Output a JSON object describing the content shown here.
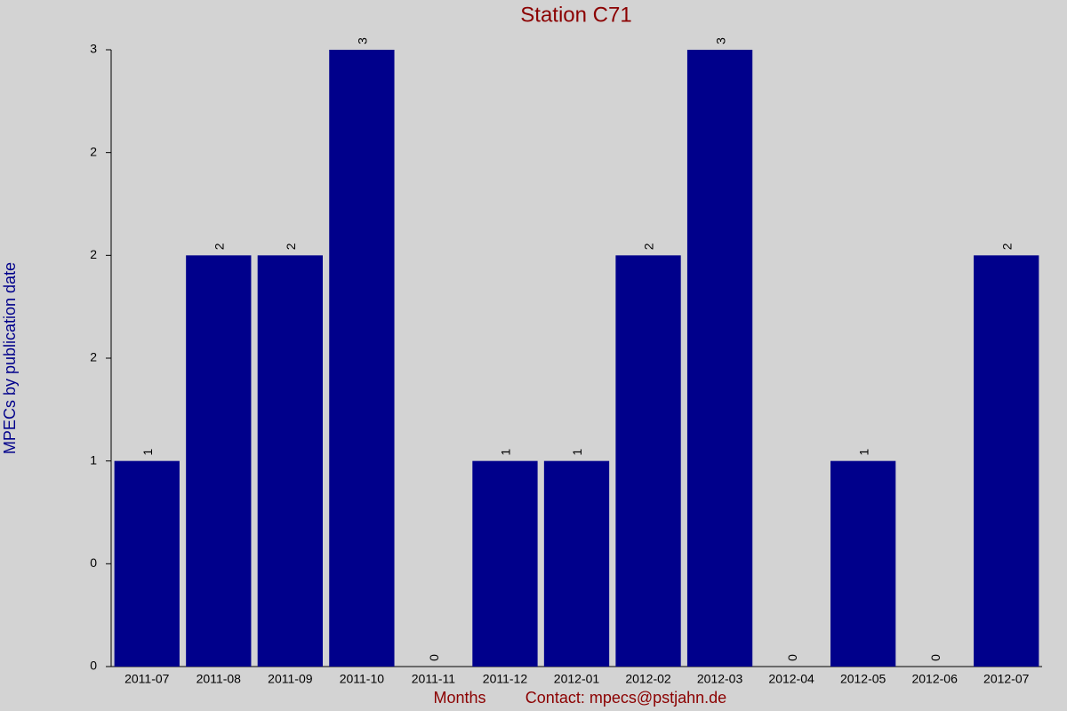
{
  "chart_data": {
    "type": "bar",
    "title": "Station C71",
    "x_label": "Months",
    "annotation": "Contact: mpecs@pstjahn.de",
    "y_label": "MPECs by publication date",
    "categories": [
      "2011-07",
      "2011-08",
      "2011-09",
      "2011-10",
      "2011-11",
      "2011-12",
      "2012-01",
      "2012-02",
      "2012-03",
      "2012-04",
      "2012-05",
      "2012-06",
      "2012-07"
    ],
    "values": [
      1,
      2,
      2,
      3,
      0,
      1,
      1,
      2,
      3,
      0,
      1,
      0,
      2
    ],
    "color": "#00008b",
    "ylim": [
      0,
      3
    ],
    "yticks": [
      0,
      {
        "value": 0.5,
        "label": "0"
      },
      1,
      {
        "value": 1.5,
        "label": "2"
      },
      2,
      {
        "value": 2.5,
        "label": "2"
      },
      3
    ],
    "grid": false
  }
}
